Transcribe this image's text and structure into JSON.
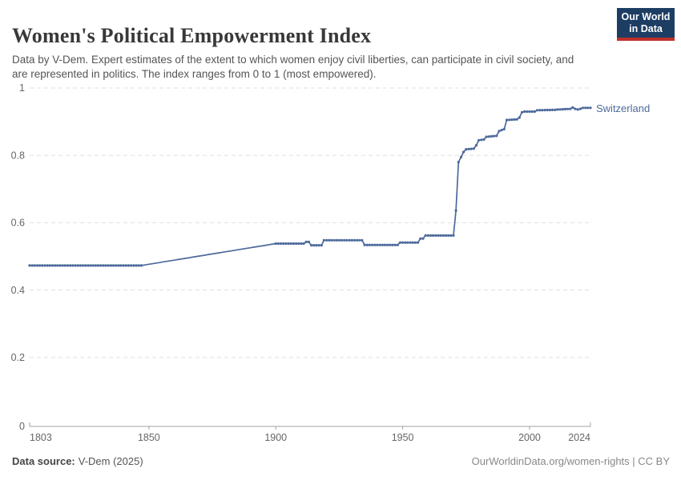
{
  "header": {
    "title": "Women's Political Empowerment Index",
    "subtitle": "Data by V-Dem. Expert estimates of the extent to which women enjoy civil liberties, can participate in civil society, and are represented in politics. The index ranges from 0 to 1 (most empowered).",
    "logo": {
      "line1": "Our World",
      "line2": "in Data"
    }
  },
  "footer": {
    "source_label": "Data source:",
    "source_value": "V-Dem (2025)",
    "credit": "OurWorldinData.org/women-rights | CC BY"
  },
  "colors": {
    "line": "#4C6A9C",
    "grid": "#e0e0e0",
    "axis": "#a3a3a3",
    "tick_text": "#666666",
    "logo_bg": "#1d3d63",
    "logo_stripe": "#c0302a"
  },
  "chart_data": {
    "type": "line",
    "title": "Women's Political Empowerment Index",
    "entity_label": "Switzerland",
    "xlabel": "",
    "ylabel": "",
    "xlim": [
      1803,
      2024
    ],
    "ylim": [
      0,
      1
    ],
    "x_ticks": [
      1803,
      1850,
      1900,
      1950,
      2000,
      2024
    ],
    "y_ticks": [
      0,
      0.2,
      0.4,
      0.6,
      0.8,
      1
    ],
    "grid": "horizontal-dashed",
    "legend_position": "end-of-line",
    "marker_free_range": [
      1848,
      1899
    ],
    "series": [
      {
        "name": "Switzerland",
        "points": [
          [
            1803,
            0.473
          ],
          [
            1847,
            0.473
          ],
          [
            1900,
            0.538
          ],
          [
            1911,
            0.538
          ],
          [
            1912,
            0.543
          ],
          [
            1913,
            0.543
          ],
          [
            1914,
            0.533
          ],
          [
            1918,
            0.533
          ],
          [
            1919,
            0.548
          ],
          [
            1934,
            0.548
          ],
          [
            1935,
            0.534
          ],
          [
            1948,
            0.534
          ],
          [
            1949,
            0.541
          ],
          [
            1956,
            0.541
          ],
          [
            1957,
            0.553
          ],
          [
            1958,
            0.553
          ],
          [
            1959,
            0.562
          ],
          [
            1970,
            0.562
          ],
          [
            1971,
            0.636
          ],
          [
            1972,
            0.78
          ],
          [
            1973,
            0.795
          ],
          [
            1974,
            0.81
          ],
          [
            1975,
            0.818
          ],
          [
            1978,
            0.82
          ],
          [
            1979,
            0.83
          ],
          [
            1980,
            0.845
          ],
          [
            1982,
            0.847
          ],
          [
            1983,
            0.855
          ],
          [
            1987,
            0.858
          ],
          [
            1988,
            0.872
          ],
          [
            1990,
            0.878
          ],
          [
            1991,
            0.905
          ],
          [
            1995,
            0.907
          ],
          [
            1996,
            0.912
          ],
          [
            1997,
            0.928
          ],
          [
            1998,
            0.93
          ],
          [
            2002,
            0.93
          ],
          [
            2003,
            0.934
          ],
          [
            2010,
            0.935
          ],
          [
            2011,
            0.936
          ],
          [
            2016,
            0.938
          ],
          [
            2017,
            0.942
          ],
          [
            2018,
            0.938
          ],
          [
            2019,
            0.936
          ],
          [
            2020,
            0.938
          ],
          [
            2021,
            0.941
          ],
          [
            2024,
            0.941
          ]
        ]
      }
    ]
  }
}
